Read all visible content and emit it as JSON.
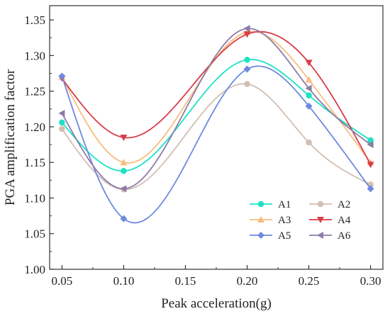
{
  "chart_data": {
    "type": "line",
    "title": "",
    "xlabel": "Peak acceleration(g)",
    "ylabel": "PGA amplification factor",
    "xlim": [
      0.04,
      0.31
    ],
    "ylim": [
      1.0,
      1.37
    ],
    "x": [
      0.05,
      0.1,
      0.2,
      0.25,
      0.3
    ],
    "xticks": [
      "0.05",
      "0.10",
      "0.15",
      "0.20",
      "0.25",
      "0.30"
    ],
    "yticks": [
      "1.00",
      "1.05",
      "1.10",
      "1.15",
      "1.20",
      "1.25",
      "1.30",
      "1.35"
    ],
    "xtick_values": [
      0.05,
      0.1,
      0.15,
      0.2,
      0.25,
      0.3
    ],
    "ytick_values": [
      1.0,
      1.05,
      1.1,
      1.15,
      1.2,
      1.25,
      1.3,
      1.35
    ],
    "grid": false,
    "legend_position": "bottom-right",
    "series": [
      {
        "name": "A1",
        "values": [
          1.206,
          1.138,
          1.294,
          1.244,
          1.181
        ],
        "color": "#1de3c4",
        "marker": "circle"
      },
      {
        "name": "A2",
        "values": [
          1.197,
          1.112,
          1.26,
          1.178,
          1.119
        ],
        "color": "#d2bfb3",
        "marker": "circle"
      },
      {
        "name": "A3",
        "values": [
          1.27,
          1.15,
          1.333,
          1.266,
          1.15
        ],
        "color": "#f7bd80",
        "marker": "triangle-up"
      },
      {
        "name": "A4",
        "values": [
          1.268,
          1.185,
          1.33,
          1.29,
          1.147
        ],
        "color": "#d93d47",
        "marker": "triangle-down"
      },
      {
        "name": "A5",
        "values": [
          1.271,
          1.071,
          1.281,
          1.229,
          1.113
        ],
        "color": "#6d8ae0",
        "marker": "diamond"
      },
      {
        "name": "A6",
        "values": [
          1.219,
          1.113,
          1.338,
          1.254,
          1.175
        ],
        "color": "#8d7ba6",
        "marker": "triangle-left"
      }
    ]
  }
}
